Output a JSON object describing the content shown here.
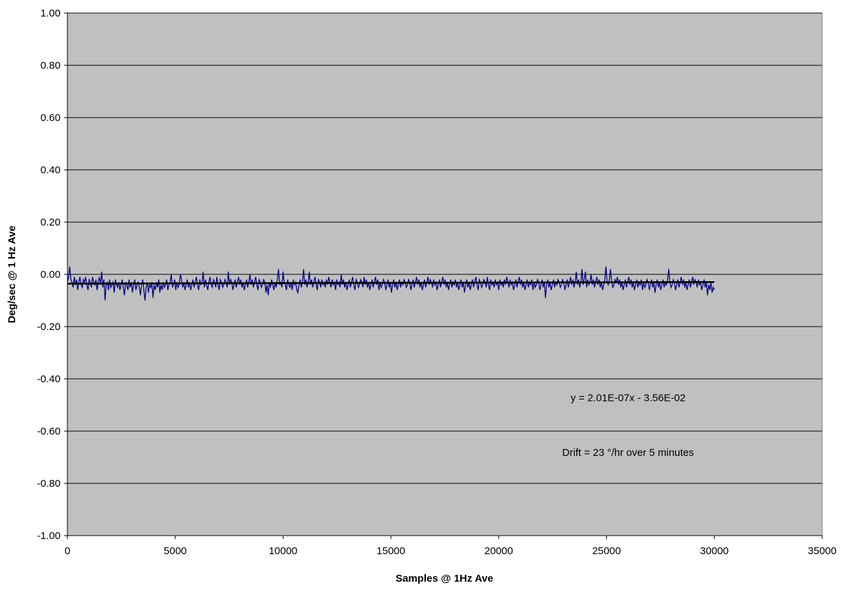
{
  "chart_data": {
    "type": "line",
    "title": "",
    "xlabel": "Samples @ 1Hz Ave",
    "ylabel": "Deg/sec @ 1 Hz Ave",
    "xlim": [
      0,
      35000
    ],
    "ylim": [
      -1.0,
      1.0
    ],
    "x_ticks": [
      0,
      5000,
      10000,
      15000,
      20000,
      25000,
      30000,
      35000
    ],
    "x_tick_labels": [
      "0",
      "5000",
      "10000",
      "15000",
      "20000",
      "25000",
      "30000",
      "35000"
    ],
    "y_ticks": [
      1.0,
      0.8,
      0.6,
      0.4,
      0.2,
      0.0,
      -0.2,
      -0.4,
      -0.6,
      -0.8,
      -1.0
    ],
    "y_tick_labels": [
      "1.00",
      "0.80",
      "0.60",
      "0.40",
      "0.20",
      "0.00",
      "-0.20",
      "-0.40",
      "-0.60",
      "-0.80",
      "-1.00"
    ],
    "grid": {
      "horizontal": true,
      "vertical": false
    },
    "background": "#c0c0c0",
    "legend": "none",
    "series": [
      {
        "color": "#000080",
        "x_start": 0,
        "x_end": 30000,
        "x_step": 50,
        "values": [
          -0.03,
          -0.01,
          0.03,
          -0.02,
          -0.03,
          -0.05,
          -0.01,
          -0.04,
          -0.02,
          -0.06,
          -0.03,
          -0.01,
          -0.04,
          -0.05,
          -0.02,
          -0.03,
          -0.01,
          -0.04,
          -0.06,
          -0.02,
          -0.03,
          -0.05,
          -0.01,
          -0.03,
          -0.04,
          -0.02,
          -0.06,
          -0.03,
          -0.01,
          -0.04,
          0.01,
          -0.05,
          -0.02,
          -0.1,
          -0.04,
          -0.03,
          -0.06,
          -0.02,
          -0.05,
          -0.04,
          -0.03,
          -0.07,
          -0.02,
          -0.04,
          -0.05,
          -0.03,
          -0.06,
          -0.04,
          -0.02,
          -0.05,
          -0.08,
          -0.03,
          -0.04,
          -0.06,
          -0.02,
          -0.05,
          -0.03,
          -0.07,
          -0.04,
          -0.02,
          -0.06,
          -0.04,
          -0.03,
          -0.05,
          -0.08,
          -0.04,
          -0.02,
          -0.06,
          -0.1,
          -0.05,
          -0.03,
          -0.07,
          -0.04,
          -0.05,
          -0.03,
          -0.09,
          -0.04,
          -0.06,
          -0.03,
          -0.05,
          -0.02,
          -0.07,
          -0.04,
          -0.06,
          -0.03,
          -0.05,
          -0.04,
          -0.02,
          -0.06,
          -0.04,
          -0.03,
          0.0,
          -0.05,
          -0.04,
          -0.02,
          -0.06,
          -0.03,
          -0.05,
          -0.04,
          0.0,
          -0.02,
          -0.05,
          -0.03,
          -0.06,
          -0.04,
          -0.02,
          -0.05,
          -0.03,
          -0.06,
          -0.04,
          -0.02,
          -0.05,
          -0.03,
          -0.01,
          -0.04,
          -0.06,
          -0.02,
          -0.04,
          -0.03,
          0.01,
          -0.05,
          -0.02,
          -0.04,
          -0.06,
          -0.03,
          -0.01,
          -0.04,
          -0.05,
          -0.02,
          -0.03,
          -0.05,
          -0.01,
          -0.04,
          -0.06,
          -0.02,
          -0.03,
          -0.05,
          -0.04,
          -0.02,
          -0.03,
          -0.05,
          0.01,
          -0.04,
          -0.02,
          -0.03,
          -0.06,
          -0.04,
          -0.02,
          -0.05,
          -0.03,
          -0.01,
          -0.04,
          -0.02,
          -0.05,
          -0.03,
          -0.06,
          -0.04,
          -0.02,
          -0.05,
          -0.03,
          0.0,
          -0.04,
          -0.02,
          -0.05,
          -0.03,
          -0.01,
          -0.04,
          -0.06,
          -0.02,
          -0.03,
          -0.05,
          -0.04,
          -0.02,
          -0.03,
          -0.07,
          -0.04,
          -0.08,
          -0.03,
          -0.05,
          -0.02,
          -0.04,
          -0.06,
          -0.03,
          -0.05,
          -0.02,
          0.02,
          -0.04,
          -0.03,
          -0.05,
          0.01,
          -0.03,
          -0.04,
          -0.06,
          -0.02,
          -0.04,
          -0.05,
          -0.03,
          -0.06,
          -0.02,
          -0.04,
          -0.03,
          -0.06,
          -0.07,
          -0.04,
          -0.02,
          -0.05,
          -0.03,
          0.02,
          -0.04,
          -0.02,
          -0.05,
          -0.03,
          0.01,
          -0.04,
          -0.02,
          -0.05,
          -0.03,
          -0.01,
          -0.04,
          -0.06,
          -0.02,
          -0.03,
          -0.05,
          -0.02,
          -0.04,
          -0.03,
          -0.05,
          -0.02,
          -0.04,
          -0.01,
          -0.03,
          -0.05,
          -0.02,
          -0.04,
          -0.03,
          -0.06,
          -0.02,
          -0.04,
          -0.03,
          -0.05,
          0.0,
          -0.04,
          -0.02,
          -0.05,
          -0.03,
          -0.06,
          -0.04,
          -0.02,
          -0.05,
          -0.03,
          -0.01,
          -0.04,
          -0.06,
          -0.02,
          -0.03,
          -0.05,
          -0.04,
          -0.02,
          -0.03,
          -0.05,
          -0.01,
          -0.04,
          -0.02,
          -0.05,
          -0.03,
          -0.06,
          -0.04,
          -0.02,
          -0.05,
          -0.03,
          -0.01,
          -0.04,
          -0.02,
          -0.06,
          -0.03,
          -0.05,
          -0.04,
          -0.02,
          -0.03,
          -0.06,
          -0.04,
          -0.02,
          -0.05,
          -0.03,
          -0.07,
          -0.04,
          -0.02,
          -0.05,
          -0.03,
          -0.06,
          -0.04,
          -0.02,
          -0.05,
          -0.03,
          -0.04,
          -0.02,
          -0.03,
          -0.05,
          -0.04,
          -0.02,
          -0.03,
          -0.06,
          -0.04,
          -0.02,
          -0.05,
          -0.03,
          -0.01,
          -0.04,
          -0.02,
          -0.05,
          -0.03,
          -0.06,
          -0.04,
          -0.02,
          -0.05,
          -0.03,
          -0.01,
          -0.04,
          -0.02,
          -0.03,
          -0.05,
          -0.02,
          -0.04,
          -0.03,
          -0.06,
          -0.04,
          -0.02,
          -0.05,
          -0.03,
          -0.01,
          -0.04,
          -0.02,
          -0.05,
          -0.03,
          -0.06,
          -0.04,
          -0.02,
          -0.05,
          -0.03,
          -0.04,
          -0.02,
          -0.05,
          -0.03,
          -0.06,
          -0.04,
          -0.02,
          -0.05,
          -0.03,
          -0.07,
          -0.04,
          -0.02,
          -0.05,
          -0.03,
          -0.06,
          -0.04,
          -0.02,
          -0.05,
          -0.03,
          -0.01,
          -0.04,
          -0.06,
          -0.02,
          -0.03,
          -0.05,
          -0.04,
          -0.02,
          -0.03,
          -0.05,
          -0.01,
          -0.04,
          -0.06,
          -0.02,
          -0.04,
          -0.03,
          -0.05,
          -0.02,
          -0.04,
          -0.03,
          -0.06,
          -0.02,
          -0.04,
          -0.03,
          -0.05,
          -0.02,
          -0.04,
          -0.01,
          -0.03,
          -0.05,
          -0.02,
          -0.04,
          -0.03,
          -0.06,
          -0.04,
          -0.02,
          -0.05,
          -0.03,
          -0.01,
          -0.04,
          -0.02,
          -0.05,
          -0.03,
          -0.06,
          -0.04,
          -0.02,
          -0.05,
          -0.03,
          -0.04,
          -0.02,
          -0.06,
          -0.03,
          -0.05,
          -0.04,
          -0.02,
          -0.03,
          -0.06,
          -0.04,
          -0.02,
          -0.05,
          -0.03,
          -0.09,
          -0.04,
          -0.02,
          -0.05,
          -0.03,
          -0.06,
          -0.04,
          -0.02,
          -0.05,
          -0.03,
          -0.04,
          -0.02,
          -0.03,
          -0.05,
          -0.04,
          -0.02,
          -0.03,
          -0.06,
          -0.04,
          -0.02,
          -0.05,
          -0.03,
          -0.01,
          -0.04,
          -0.02,
          -0.05,
          -0.03,
          0.01,
          -0.04,
          -0.02,
          -0.05,
          -0.03,
          0.02,
          -0.04,
          -0.02,
          0.01,
          -0.05,
          -0.02,
          -0.04,
          -0.03,
          0.0,
          -0.04,
          -0.02,
          -0.05,
          -0.03,
          -0.01,
          -0.04,
          -0.02,
          -0.05,
          -0.03,
          -0.06,
          -0.04,
          -0.02,
          0.03,
          -0.03,
          -0.04,
          -0.02,
          0.02,
          -0.03,
          -0.05,
          -0.04,
          -0.02,
          -0.03,
          -0.01,
          -0.04,
          -0.02,
          -0.05,
          -0.03,
          -0.06,
          -0.04,
          -0.02,
          -0.05,
          -0.03,
          -0.01,
          -0.04,
          -0.02,
          -0.05,
          -0.03,
          -0.06,
          -0.04,
          -0.02,
          -0.05,
          -0.03,
          -0.04,
          -0.02,
          -0.06,
          -0.03,
          -0.05,
          -0.04,
          -0.02,
          -0.03,
          -0.06,
          -0.04,
          -0.02,
          -0.05,
          -0.03,
          -0.07,
          -0.04,
          -0.02,
          -0.05,
          -0.03,
          -0.06,
          -0.04,
          -0.02,
          -0.05,
          -0.03,
          -0.04,
          -0.02,
          0.02,
          -0.03,
          -0.05,
          -0.04,
          -0.02,
          -0.03,
          -0.06,
          -0.04,
          -0.02,
          -0.05,
          -0.03,
          -0.01,
          -0.04,
          -0.02,
          -0.05,
          -0.03,
          -0.06,
          -0.04,
          -0.02,
          -0.05,
          -0.03,
          -0.01,
          -0.04,
          -0.02,
          -0.03,
          -0.05,
          -0.02,
          -0.04,
          -0.03,
          -0.06,
          -0.04,
          -0.02,
          -0.05,
          -0.03,
          -0.08,
          -0.04,
          -0.06,
          -0.03,
          -0.07,
          -0.05,
          -0.06
        ]
      },
      {
        "color": "#000000",
        "x_start": 0,
        "x_end": 30000,
        "slope": 2.01e-07,
        "intercept": -0.0356
      }
    ],
    "annotations": [
      {
        "text": "y = 2.01E-07x - 3.56E-02",
        "x": 26000,
        "y": -0.485
      },
      {
        "text": "Drift = 23 °/hr over 5 minutes",
        "x": 26000,
        "y": -0.695
      }
    ]
  }
}
